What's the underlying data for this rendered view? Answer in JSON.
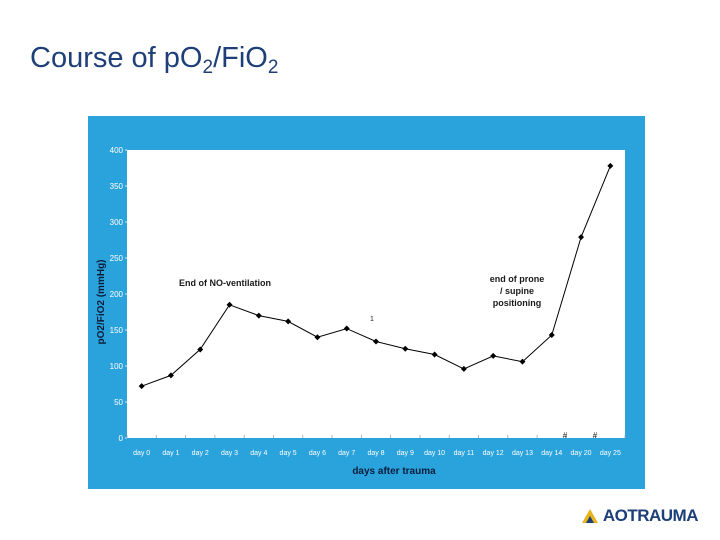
{
  "slide": {
    "title_main": "Course of pO",
    "title_sub1": "2",
    "title_mid": "/FiO",
    "title_sub2": "2"
  },
  "logo": {
    "text": "AOTRAUMA",
    "icon": "ao-logo-icon"
  },
  "colors": {
    "panel": "#2aa3dd",
    "plot": "#ffffff",
    "title": "#1f3f78",
    "line": "#000000",
    "axis_text": "#ffffff",
    "label_text": "#0a1c3a"
  },
  "chart_data": {
    "type": "line",
    "title": "",
    "xlabel": "days after trauma",
    "ylabel": "pO2/FiO2 (mmHg)",
    "ylim": [
      0,
      400
    ],
    "yticks": [
      0,
      50,
      100,
      150,
      200,
      250,
      300,
      350,
      400
    ],
    "grid": false,
    "categories": [
      "day 0",
      "day 1",
      "day 2",
      "day 3",
      "day 4",
      "day 5",
      "day 6",
      "day 7",
      "day 8",
      "day 9",
      "day 10",
      "day 11",
      "day 12",
      "day 13",
      "day 14",
      "day 20",
      "day 25"
    ],
    "series": [
      {
        "values": [
          72,
          87,
          123,
          185,
          170,
          162,
          140,
          152,
          134,
          124,
          116,
          96,
          114,
          106,
          143,
          279,
          378
        ]
      }
    ],
    "annotations": [
      {
        "text": "End of NO-ventilation",
        "near": "day 3"
      },
      {
        "text": "1",
        "near": "day 8"
      },
      {
        "text": "end of prone / supine positioning",
        "lines": [
          "end of prone",
          "/ supine",
          "positioning"
        ],
        "near": "day 13"
      },
      {
        "text": "#",
        "near": "day 14"
      },
      {
        "text": "#",
        "near": "day 20"
      }
    ]
  }
}
